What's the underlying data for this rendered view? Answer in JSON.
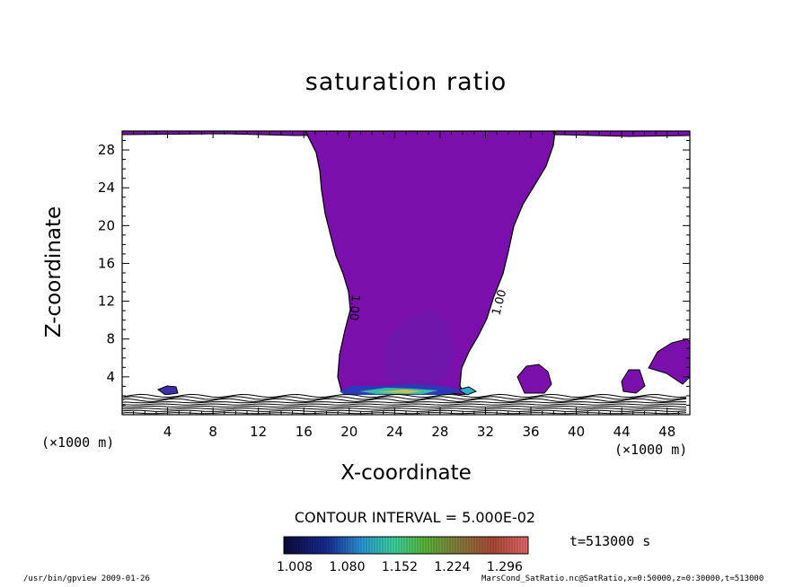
{
  "chart_data": {
    "type": "heatmap",
    "title": "saturation ratio",
    "xlabel": "X-coordinate",
    "ylabel": "Z-coordinate",
    "x_unit": "(×1000 m)",
    "y_unit": "(×1000 m)",
    "xlim": [
      0,
      50
    ],
    "ylim": [
      0,
      30
    ],
    "x_ticks": [
      "4",
      "8",
      "12",
      "16",
      "20",
      "24",
      "28",
      "32",
      "36",
      "40",
      "44",
      "48"
    ],
    "y_ticks": [
      "4",
      "8",
      "12",
      "16",
      "20",
      "24",
      "28"
    ],
    "contour_labels": [
      "1.00",
      "1.00"
    ],
    "contour_interval": "CONTOUR INTERVAL = 5.000E-02",
    "colorbar_ticks": [
      "1.008",
      "1.080",
      "1.152",
      "1.224",
      "1.296"
    ],
    "colorbar_range": [
      1.008,
      1.296
    ],
    "fill_color": "#7a0fab",
    "colors": {
      "saturated_region": "#7a0fab",
      "colorbar_low": "#0a0a3a",
      "colorbar_high": "#e86a6a"
    }
  },
  "time_label": "t=513000 s",
  "footer": {
    "left": "/usr/bin/gpview   2009-01-26",
    "right": "MarsCond_SatRatio.nc@SatRatio,x=0:50000,z=0:30000,t=513000"
  }
}
